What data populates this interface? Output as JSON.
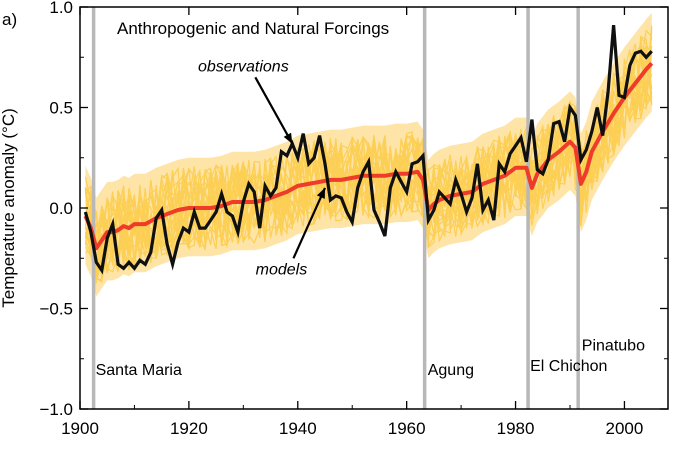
{
  "chart_data": {
    "type": "line",
    "panel_label": "a)",
    "title": "Anthropogenic and Natural Forcings",
    "xlabel": "",
    "ylabel": "Temperature anomaly (°C)",
    "xlim": [
      1900,
      2008
    ],
    "ylim": [
      -1.0,
      1.0
    ],
    "x_ticks": [
      1900,
      1920,
      1940,
      1960,
      1980,
      2000
    ],
    "y_ticks": [
      -1.0,
      -0.5,
      0.0,
      0.5,
      1.0
    ],
    "y_tick_labels": [
      "−1.0",
      "−0.5",
      "0.0",
      "0.5",
      "1.0"
    ],
    "colors": {
      "models_band": "#fcc33b",
      "model_ensemble": "#fccf55",
      "model_mean": "#ee3b2a",
      "observations": "#101010",
      "eruption": "#b8b8b8"
    },
    "annotations": [
      {
        "text": "observations",
        "x": 1930,
        "y": 0.68,
        "points_to": [
          1939,
          0.32
        ]
      },
      {
        "text": "models",
        "x": 1937,
        "y": -0.33,
        "points_to": [
          1945,
          0.1
        ]
      }
    ],
    "eruptions": [
      {
        "name": "Santa Maria",
        "year": 1902.5,
        "label_year": 1902.5,
        "label_y": -0.83
      },
      {
        "name": "Agung",
        "year": 1963.3,
        "label_year": 1963.5,
        "label_y": -0.83
      },
      {
        "name": "El Chichon",
        "year": 1982.3,
        "label_year": 1982.3,
        "label_y": -0.81
      },
      {
        "name": "Pinatubo",
        "year": 1991.5,
        "label_year": 1991.8,
        "label_y": -0.71
      }
    ],
    "series": [
      {
        "name": "observations",
        "x": [
          1901,
          1902,
          1903,
          1904,
          1905,
          1906,
          1907,
          1908,
          1909,
          1910,
          1911,
          1912,
          1913,
          1914,
          1915,
          1916,
          1917,
          1918,
          1919,
          1920,
          1921,
          1922,
          1923,
          1924,
          1925,
          1926,
          1927,
          1928,
          1929,
          1930,
          1931,
          1932,
          1933,
          1934,
          1935,
          1936,
          1937,
          1938,
          1939,
          1940,
          1941,
          1942,
          1943,
          1944,
          1945,
          1946,
          1947,
          1948,
          1949,
          1950,
          1951,
          1952,
          1953,
          1954,
          1955,
          1956,
          1957,
          1958,
          1959,
          1960,
          1961,
          1962,
          1963,
          1964,
          1965,
          1966,
          1967,
          1968,
          1969,
          1970,
          1971,
          1972,
          1973,
          1974,
          1975,
          1976,
          1977,
          1978,
          1979,
          1980,
          1981,
          1982,
          1983,
          1984,
          1985,
          1986,
          1987,
          1988,
          1989,
          1990,
          1991,
          1992,
          1993,
          1994,
          1995,
          1996,
          1997,
          1998,
          1999,
          2000,
          2001,
          2002,
          2003,
          2004,
          2005
        ],
        "values": [
          -0.02,
          -0.12,
          -0.27,
          -0.31,
          -0.15,
          -0.08,
          -0.28,
          -0.3,
          -0.27,
          -0.3,
          -0.26,
          -0.28,
          -0.22,
          -0.05,
          -0.01,
          -0.18,
          -0.28,
          -0.17,
          -0.1,
          -0.12,
          -0.02,
          -0.1,
          -0.1,
          -0.06,
          -0.02,
          0.07,
          -0.02,
          -0.04,
          -0.12,
          0.03,
          0.12,
          0.08,
          -0.1,
          0.11,
          0.06,
          0.1,
          0.28,
          0.26,
          0.32,
          0.25,
          0.37,
          0.22,
          0.25,
          0.36,
          0.22,
          0.04,
          0.06,
          0.05,
          -0.02,
          -0.07,
          0.1,
          0.18,
          0.23,
          -0.01,
          -0.07,
          -0.14,
          0.1,
          0.18,
          0.13,
          0.08,
          0.22,
          0.23,
          0.26,
          -0.06,
          -0.01,
          0.08,
          0.05,
          0.02,
          0.14,
          0.07,
          -0.02,
          0.05,
          0.22,
          -0.01,
          0.04,
          -0.06,
          0.22,
          0.18,
          0.27,
          0.31,
          0.35,
          0.23,
          0.44,
          0.19,
          0.17,
          0.24,
          0.42,
          0.43,
          0.33,
          0.5,
          0.46,
          0.24,
          0.29,
          0.38,
          0.5,
          0.36,
          0.58,
          0.91,
          0.56,
          0.55,
          0.71,
          0.77,
          0.78,
          0.75,
          0.78
        ]
      },
      {
        "name": "models",
        "x": [
          1901,
          1902,
          1903,
          1904,
          1905,
          1906,
          1907,
          1908,
          1909,
          1910,
          1912,
          1914,
          1916,
          1918,
          1920,
          1922,
          1924,
          1926,
          1928,
          1930,
          1932,
          1934,
          1936,
          1938,
          1940,
          1942,
          1944,
          1946,
          1948,
          1950,
          1952,
          1954,
          1956,
          1958,
          1960,
          1962,
          1963,
          1964,
          1965,
          1966,
          1968,
          1970,
          1972,
          1974,
          1976,
          1978,
          1980,
          1982,
          1983,
          1984,
          1986,
          1988,
          1990,
          1991,
          1992,
          1993,
          1994,
          1996,
          1998,
          2000,
          2002,
          2004,
          2005
        ],
        "values": [
          -0.04,
          -0.1,
          -0.2,
          -0.16,
          -0.12,
          -0.12,
          -0.11,
          -0.09,
          -0.1,
          -0.08,
          -0.08,
          -0.05,
          -0.03,
          -0.01,
          0.0,
          0.0,
          0.0,
          0.01,
          0.03,
          0.03,
          0.03,
          0.04,
          0.06,
          0.08,
          0.11,
          0.12,
          0.13,
          0.14,
          0.14,
          0.15,
          0.16,
          0.16,
          0.16,
          0.17,
          0.17,
          0.18,
          0.14,
          -0.01,
          0.02,
          0.04,
          0.06,
          0.07,
          0.08,
          0.12,
          0.14,
          0.16,
          0.2,
          0.2,
          0.1,
          0.17,
          0.24,
          0.28,
          0.33,
          0.3,
          0.12,
          0.18,
          0.28,
          0.38,
          0.47,
          0.55,
          0.62,
          0.69,
          0.72
        ]
      }
    ]
  }
}
